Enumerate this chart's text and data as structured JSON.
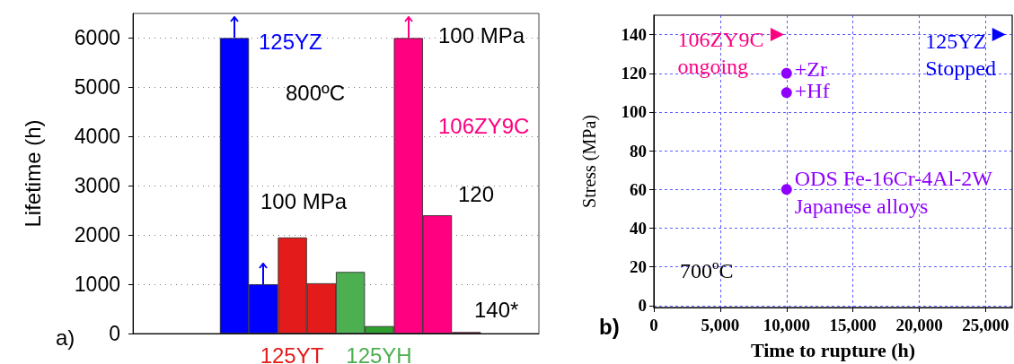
{
  "chart_data": [
    {
      "type": "bar",
      "ylabel": "Lifetime (h)",
      "categories": [
        null,
        null,
        null,
        null,
        null,
        null,
        null,
        null,
        null,
        null,
        null,
        null,
        null,
        null
      ],
      "values": [
        null,
        null,
        null,
        6000,
        1000,
        1950,
        1020,
        1250,
        150,
        6000,
        2400,
        30,
        null,
        null
      ],
      "colors": [
        null,
        null,
        null,
        "#0000ff",
        "#0000ff",
        "#e31b1b",
        "#e31b1b",
        "#4caf50",
        "#2e9e2e",
        "#ff0080",
        "#ff0080",
        "#ff0080",
        null,
        null
      ],
      "ylim": [
        0,
        6500
      ],
      "yticks": [
        0,
        1000,
        2000,
        3000,
        4000,
        5000,
        6000
      ],
      "grid": "y",
      "tick_labels": "y",
      "annotations": [
        "125YZ",
        "800ºC",
        "100 MPa",
        "100 MPa",
        "106ZY9C",
        "120",
        "140*",
        "a)",
        "125YT",
        "125YH"
      ]
    },
    {
      "type": "scatter",
      "xlabel": "Time to rupture (h)",
      "ylabel": "Stress (MPa)",
      "series": [
        {
          "color": "#ff0080",
          "marker": "triangle",
          "x": [
            9300
          ],
          "values": [
            140
          ]
        },
        {
          "color": "#0000ff",
          "marker": "triangle",
          "x": [
            26000
          ],
          "values": [
            140
          ]
        },
        {
          "color": "#8f00ff",
          "marker": "circle",
          "x": [
            10000,
            10000,
            10000
          ],
          "values": [
            120,
            110,
            60
          ]
        }
      ],
      "xlim": [
        0,
        27000
      ],
      "xticks": [
        0,
        {
          "value": 5000,
          "label": "5,000"
        },
        {
          "value": 10000,
          "label": "10,000"
        },
        {
          "value": 15000,
          "label": "15,000"
        },
        {
          "value": 20000,
          "label": "20,000"
        },
        {
          "value": 25000,
          "label": "25,000"
        }
      ],
      "ylim": [
        -1,
        150
      ],
      "yticks": [
        0,
        20,
        40,
        60,
        80,
        100,
        120,
        140
      ],
      "grid": true,
      "annotations": [
        {
          "text": "106ZY9C",
          "x": 9300,
          "y": 140
        },
        {
          "text": "ongoing",
          "x": 9300,
          "y": 140
        },
        {
          "text": "+Zr",
          "x": 10000,
          "y": 120
        },
        {
          "text": "+Hf",
          "x": 10000,
          "y": 110
        },
        {
          "text": "ODS Fe-16Cr-4Al-2W",
          "x": 10000,
          "y": 60
        },
        {
          "text": "Japanese alloys",
          "x": 10000,
          "y": 60
        },
        {
          "text": "125YZ",
          "x": 26000,
          "y": 140
        },
        {
          "text": "Stopped",
          "x": 26000,
          "y": 140
        },
        "700ºC",
        "b)"
      ]
    }
  ]
}
